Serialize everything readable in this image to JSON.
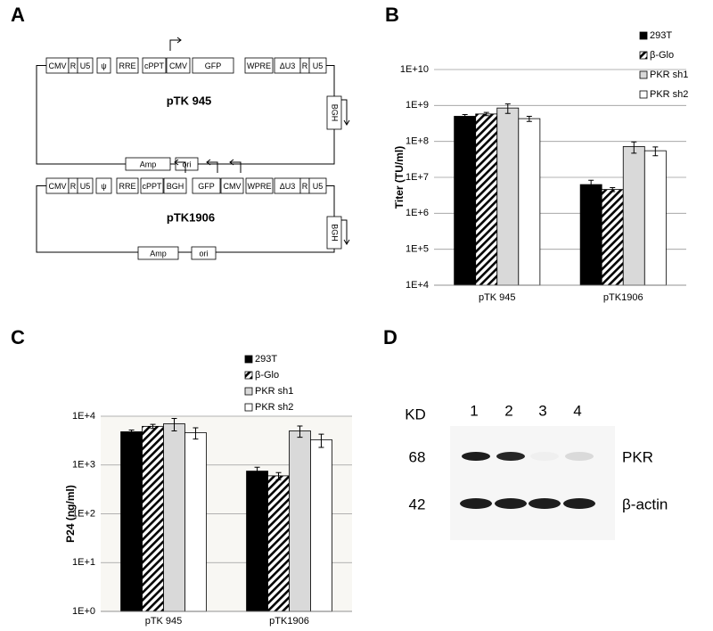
{
  "diagram": {
    "panel_label": "A",
    "constructs": [
      {
        "name": "pTK 945",
        "elements": [
          "CMV",
          "R",
          "U5",
          "ψ",
          "RRE",
          "cPPT",
          "CMV",
          "GFP",
          "WPRE",
          "ΔU3",
          "R",
          "U5"
        ],
        "terminator": "BGH",
        "backbone": [
          "Amp",
          "ori"
        ]
      },
      {
        "name": "pTK1906",
        "elements": [
          "CMV",
          "R",
          "U5",
          "ψ",
          "RRE",
          "cPPT",
          "BGH",
          "GFP",
          "CMV",
          "WPRE",
          "ΔU3",
          "R",
          "U5"
        ],
        "terminator": "BGH",
        "backbone": [
          "Amp",
          "ori"
        ]
      }
    ]
  },
  "chart_data": [
    {
      "type": "bar",
      "panel_label": "B",
      "y_label": "Titer (TU/ml)",
      "yscale": "log",
      "grid": true,
      "categories": [
        "pTK 945",
        "pTK1906"
      ],
      "ylim": [
        10000,
        10000000000
      ],
      "yticks": [
        {
          "value": 10000,
          "label": "1E+4"
        },
        {
          "value": 100000,
          "label": "1E+5"
        },
        {
          "value": 1000000,
          "label": "1E+6"
        },
        {
          "value": 10000000,
          "label": "1E+7"
        },
        {
          "value": 100000000,
          "label": "1E+8"
        },
        {
          "value": 1000000000,
          "label": "1E+9"
        },
        {
          "value": 10000000000,
          "label": "1E+10"
        }
      ],
      "series": [
        {
          "name": "293T",
          "color": "#000000",
          "values": [
            500000000,
            6300000
          ],
          "errors": [
            60000000,
            2000000
          ]
        },
        {
          "name": "β-Glo",
          "color": "#000000",
          "pattern": "hatch",
          "values": [
            580000000,
            4600000
          ],
          "errors": [
            60000000,
            600000
          ]
        },
        {
          "name": "PKR sh1",
          "color": "#d9d9d9",
          "values": [
            850000000,
            72000000
          ],
          "errors": [
            250000000,
            25000000
          ]
        },
        {
          "name": "PKR sh2",
          "color": "#ffffff",
          "values": [
            430000000,
            55000000
          ],
          "errors": [
            70000000,
            15000000
          ]
        }
      ]
    },
    {
      "type": "bar",
      "panel_label": "C",
      "y_label": "P24 (ng/ml)",
      "yscale": "log",
      "grid": true,
      "categories": [
        "pTK 945",
        "pTK1906"
      ],
      "ylim": [
        1,
        10000
      ],
      "yticks": [
        {
          "value": 1,
          "label": "1E+0"
        },
        {
          "value": 10,
          "label": "1E+1"
        },
        {
          "value": 100,
          "label": "1E+2"
        },
        {
          "value": 1000,
          "label": "1E+3"
        },
        {
          "value": 10000,
          "label": "1E+4"
        }
      ],
      "series": [
        {
          "name": "293T",
          "color": "#000000",
          "values": [
            4800,
            750
          ],
          "errors": [
            400,
            150
          ]
        },
        {
          "name": "β-Glo",
          "color": "#000000",
          "pattern": "hatch",
          "values": [
            6200,
            600
          ],
          "errors": [
            600,
            100
          ]
        },
        {
          "name": "PKR sh1",
          "color": "#d9d9d9",
          "values": [
            7000,
            5000
          ],
          "errors": [
            2000,
            1300
          ]
        },
        {
          "name": "PKR sh2",
          "color": "#ffffff",
          "values": [
            4600,
            3300
          ],
          "errors": [
            1200,
            1000
          ]
        }
      ]
    }
  ],
  "blot": {
    "panel_label": "D",
    "unit": "KD",
    "lanes": [
      "1",
      "2",
      "3",
      "4"
    ],
    "markers": [
      "68",
      "42"
    ],
    "proteins": [
      "PKR",
      "β-actin"
    ]
  }
}
